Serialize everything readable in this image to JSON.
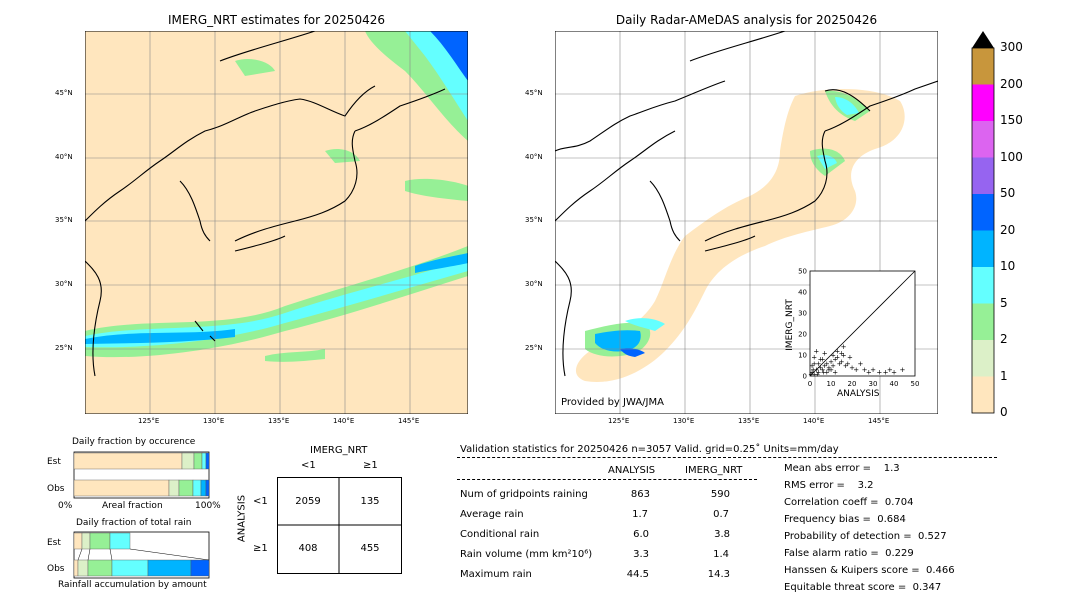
{
  "left_map": {
    "title": "IMERG_NRT estimates for 20250426",
    "lat_labels": [
      "45°N",
      "40°N",
      "35°N",
      "30°N",
      "25°N"
    ],
    "lon_labels": [
      "125°E",
      "130°E",
      "135°E",
      "140°E",
      "145°E"
    ]
  },
  "right_map": {
    "title": "Daily Radar-AMeDAS analysis for 20250426",
    "lat_labels": [
      "45°N",
      "40°N",
      "35°N",
      "30°N",
      "25°N"
    ],
    "lon_labels": [
      "125°E",
      "130°E",
      "135°E",
      "140°E",
      "145°E"
    ],
    "credit": "Provided by JWA/JMA"
  },
  "colorbar": {
    "levels": [
      "300",
      "200",
      "150",
      "100",
      "50",
      "20",
      "10",
      "5",
      "2",
      "1",
      "0"
    ],
    "colors": [
      "#c8963c",
      "#ff00ff",
      "#dc64f0",
      "#9664f0",
      "#0064ff",
      "#00b4ff",
      "#64ffff",
      "#96f096",
      "#dcf0c8",
      "#ffe6be"
    ]
  },
  "occurrence": {
    "title": "Daily fraction by occurence",
    "row_labels": [
      "Est",
      "Obs"
    ],
    "axis_left": "0%",
    "axis_mid": "Areal fraction",
    "axis_right": "100%"
  },
  "total_rain": {
    "title": "Daily fraction of total rain",
    "row_labels": [
      "Est",
      "Obs"
    ],
    "footer": "Rainfall accumulation by amount"
  },
  "contingency": {
    "header": "IMERG_NRT",
    "col_labels": [
      "<1",
      "≥1"
    ],
    "side_label": "ANALYSIS",
    "row_labels": [
      "<1",
      "≥1"
    ],
    "cells": [
      [
        "2059",
        "135"
      ],
      [
        "408",
        "455"
      ]
    ]
  },
  "validation": {
    "header": "Validation statistics for 20250426  n=3057 Valid. grid=0.25˚ Units=mm/day",
    "col_analysis": "ANALYSIS",
    "col_imerg": "IMERG_NRT",
    "rows": [
      {
        "label": "Num of gridpoints raining",
        "analysis": "863",
        "imerg": "590"
      },
      {
        "label": "Average rain",
        "analysis": "1.7",
        "imerg": "0.7"
      },
      {
        "label": "Conditional rain",
        "analysis": "6.0",
        "imerg": "3.8"
      },
      {
        "label": "Rain volume (mm km²10⁶)",
        "analysis": "3.3",
        "imerg": "1.4"
      },
      {
        "label": "Maximum rain",
        "analysis": "44.5",
        "imerg": "14.3"
      }
    ],
    "scores": [
      "Mean abs error =    1.3",
      "RMS error =    3.2",
      "Correlation coeff =  0.704",
      "Frequency bias =  0.684",
      "Probability of detection =  0.527",
      "False alarm ratio =  0.229",
      "Hanssen & Kuipers score =  0.466",
      "Equitable threat score =  0.347"
    ]
  },
  "chart_data": [
    {
      "type": "scatter",
      "xlabel": "ANALYSIS",
      "ylabel": "IMERG_NRT",
      "xlim": [
        0,
        50
      ],
      "ylim": [
        0,
        50
      ],
      "ticks": [
        "0",
        "10",
        "20",
        "30",
        "40",
        "50"
      ],
      "points": [
        [
          1,
          2
        ],
        [
          2,
          1
        ],
        [
          3,
          3
        ],
        [
          4,
          2
        ],
        [
          5,
          4
        ],
        [
          6,
          3
        ],
        [
          7,
          5
        ],
        [
          8,
          6
        ],
        [
          9,
          4
        ],
        [
          10,
          7
        ],
        [
          11,
          5
        ],
        [
          12,
          8
        ],
        [
          13,
          9
        ],
        [
          14,
          6
        ],
        [
          15,
          7
        ],
        [
          16,
          10
        ],
        [
          17,
          5
        ],
        [
          18,
          6
        ],
        [
          20,
          4
        ],
        [
          22,
          3
        ],
        [
          24,
          6
        ],
        [
          26,
          3
        ],
        [
          28,
          2
        ],
        [
          30,
          3
        ],
        [
          33,
          2
        ],
        [
          36,
          2
        ],
        [
          38,
          3
        ],
        [
          40,
          2
        ],
        [
          44,
          3
        ],
        [
          2,
          9
        ],
        [
          3,
          12
        ],
        [
          5,
          8
        ],
        [
          7,
          11
        ],
        [
          9,
          3
        ],
        [
          11,
          10
        ],
        [
          13,
          12
        ],
        [
          15,
          11
        ],
        [
          16,
          14
        ],
        [
          4,
          6
        ],
        [
          6,
          8
        ],
        [
          8,
          2
        ],
        [
          10,
          3
        ],
        [
          12,
          2
        ],
        [
          1,
          5
        ],
        [
          2,
          6
        ],
        [
          0.5,
          1
        ],
        [
          1.5,
          3
        ],
        [
          3.5,
          1
        ],
        [
          6.5,
          2
        ],
        [
          19,
          9
        ]
      ]
    }
  ]
}
